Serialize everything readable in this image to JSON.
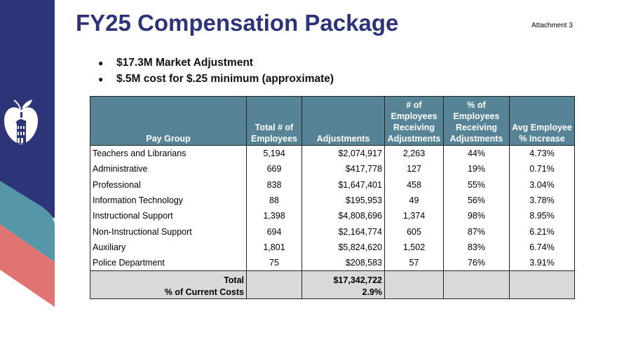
{
  "colors": {
    "navy": "#2e3478",
    "teal": "#5596a8",
    "coral": "#e07472",
    "header": "#578397",
    "total_bg": "#d9d9d9"
  },
  "logo": {
    "icon": "apple-capitol-logo-icon"
  },
  "title": "FY25 Compensation Package",
  "attachment": "Attachment 3",
  "bullets": [
    "$17.3M Market Adjustment",
    "$.5M cost for $.25 minimum (approximate)"
  ],
  "bullet_char": "●",
  "table": {
    "headers": [
      "Pay Group",
      "Total # of Employees",
      "Adjustments",
      "# of Employees Receiving Adjustments",
      "% of Employees Receiving Adjustments",
      "Avg Employee % Increase"
    ],
    "header_lines": [
      [
        "Pay Group"
      ],
      [
        "Total # of",
        "Employees"
      ],
      [
        "Adjustments"
      ],
      [
        "# of",
        "Employees",
        "Receiving",
        "Adjustments"
      ],
      [
        "% of",
        "Employees",
        "Receiving",
        "Adjustments"
      ],
      [
        "Avg Employee",
        "% Increase"
      ]
    ],
    "rows": [
      [
        "Teachers and Librarians",
        "5,194",
        "$2,074,917",
        "2,263",
        "44%",
        "4.73%"
      ],
      [
        "Administrative",
        "669",
        "$417,778",
        "127",
        "19%",
        "0.71%"
      ],
      [
        "Professional",
        "838",
        "$1,647,401",
        "458",
        "55%",
        "3.04%"
      ],
      [
        "Information Technology",
        "88",
        "$195,953",
        "49",
        "56%",
        "3.78%"
      ],
      [
        "Instructional Support",
        "1,398",
        "$4,808,696",
        "1,374",
        "98%",
        "8.95%"
      ],
      [
        "Non-Instructional Support",
        "694",
        "$2,164,774",
        "605",
        "87%",
        "6.21%"
      ],
      [
        "Auxiliary",
        "1,801",
        "$5,824,620",
        "1,502",
        "83%",
        "6.74%"
      ],
      [
        "Police Department",
        "75",
        "$208,583",
        "57",
        "76%",
        "3.91%"
      ]
    ],
    "total": {
      "label": "Total",
      "sublabel": "% of Current Costs",
      "adjustments": "$17,342,722",
      "percent": "2.9%"
    }
  }
}
